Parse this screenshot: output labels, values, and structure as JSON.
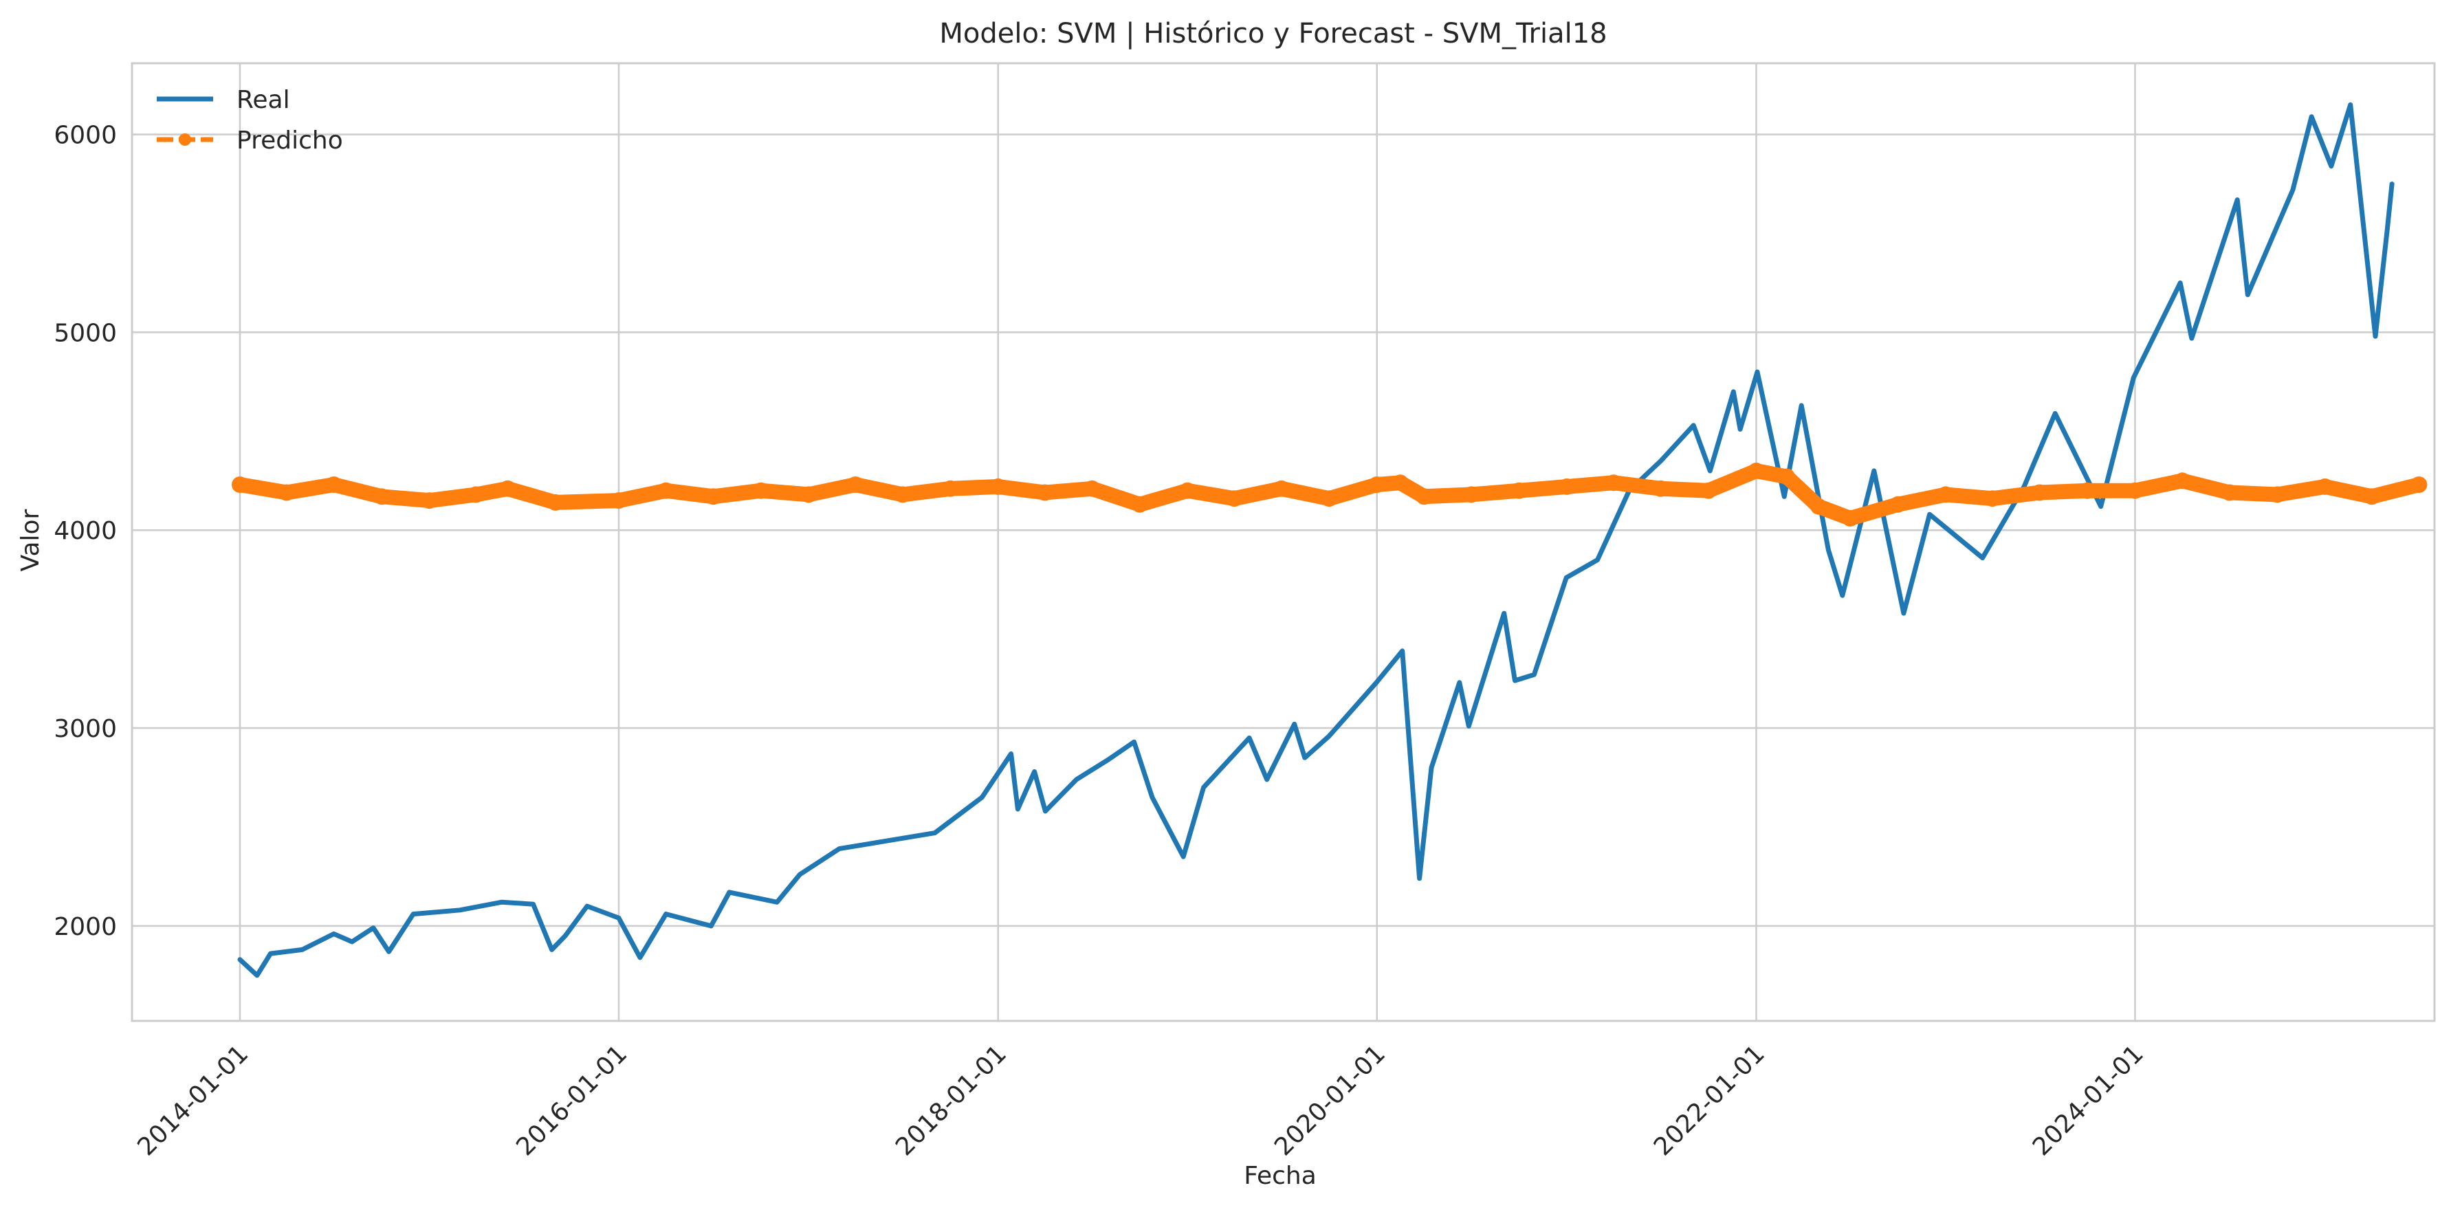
{
  "chart_data": {
    "type": "line",
    "title": "Modelo: SVM | Histórico y Forecast - SVM_Trial18",
    "xlabel": "Fecha",
    "ylabel": "Valor",
    "x_ticks": [
      "2014-01-01",
      "2016-01-01",
      "2018-01-01",
      "2020-01-01",
      "2022-01-01",
      "2024-01-01"
    ],
    "y_ticks": [
      2000,
      3000,
      4000,
      5000,
      6000
    ],
    "xlim": [
      "2013-06-07",
      "2025-07-31"
    ],
    "ylim": [
      1520,
      6360
    ],
    "grid": true,
    "legend_position": "top-left",
    "series": [
      {
        "name": "Real",
        "color": "#1f77b4",
        "marker": "none",
        "points": [
          [
            "2014-01-01",
            1830
          ],
          [
            "2014-02-03",
            1750
          ],
          [
            "2014-03-01",
            1860
          ],
          [
            "2014-05-01",
            1880
          ],
          [
            "2014-07-01",
            1960
          ],
          [
            "2014-08-05",
            1920
          ],
          [
            "2014-09-15",
            1990
          ],
          [
            "2014-10-15",
            1870
          ],
          [
            "2014-12-01",
            2060
          ],
          [
            "2015-03-01",
            2080
          ],
          [
            "2015-05-20",
            2120
          ],
          [
            "2015-07-20",
            2110
          ],
          [
            "2015-08-25",
            1880
          ],
          [
            "2015-09-20",
            1950
          ],
          [
            "2015-11-01",
            2100
          ],
          [
            "2016-01-01",
            2040
          ],
          [
            "2016-02-11",
            1840
          ],
          [
            "2016-04-01",
            2060
          ],
          [
            "2016-06-27",
            2000
          ],
          [
            "2016-08-01",
            2170
          ],
          [
            "2016-11-01",
            2120
          ],
          [
            "2016-12-15",
            2260
          ],
          [
            "2017-03-01",
            2390
          ],
          [
            "2017-06-01",
            2430
          ],
          [
            "2017-09-01",
            2470
          ],
          [
            "2017-12-01",
            2650
          ],
          [
            "2018-01-26",
            2870
          ],
          [
            "2018-02-08",
            2590
          ],
          [
            "2018-03-12",
            2780
          ],
          [
            "2018-04-02",
            2580
          ],
          [
            "2018-06-01",
            2740
          ],
          [
            "2018-08-01",
            2840
          ],
          [
            "2018-09-20",
            2930
          ],
          [
            "2018-10-25",
            2650
          ],
          [
            "2018-12-24",
            2350
          ],
          [
            "2019-02-01",
            2700
          ],
          [
            "2019-04-30",
            2950
          ],
          [
            "2019-06-03",
            2740
          ],
          [
            "2019-07-26",
            3020
          ],
          [
            "2019-08-15",
            2850
          ],
          [
            "2019-10-01",
            2960
          ],
          [
            "2019-12-31",
            3230
          ],
          [
            "2020-02-19",
            3390
          ],
          [
            "2020-03-23",
            2240
          ],
          [
            "2020-04-15",
            2800
          ],
          [
            "2020-06-08",
            3230
          ],
          [
            "2020-06-26",
            3010
          ],
          [
            "2020-09-02",
            3580
          ],
          [
            "2020-09-23",
            3240
          ],
          [
            "2020-10-30",
            3270
          ],
          [
            "2020-12-31",
            3760
          ],
          [
            "2021-03-01",
            3850
          ],
          [
            "2021-05-01",
            4200
          ],
          [
            "2021-07-01",
            4350
          ],
          [
            "2021-09-02",
            4530
          ],
          [
            "2021-10-04",
            4300
          ],
          [
            "2021-11-18",
            4700
          ],
          [
            "2021-12-01",
            4510
          ],
          [
            "2022-01-03",
            4800
          ],
          [
            "2022-02-24",
            4170
          ],
          [
            "2022-03-29",
            4630
          ],
          [
            "2022-05-20",
            3900
          ],
          [
            "2022-06-16",
            3670
          ],
          [
            "2022-08-16",
            4300
          ],
          [
            "2022-10-12",
            3580
          ],
          [
            "2022-12-01",
            4080
          ],
          [
            "2023-03-13",
            3860
          ],
          [
            "2023-06-01",
            4220
          ],
          [
            "2023-07-31",
            4590
          ],
          [
            "2023-10-27",
            4120
          ],
          [
            "2023-12-29",
            4770
          ],
          [
            "2024-03-28",
            5250
          ],
          [
            "2024-04-19",
            4970
          ],
          [
            "2024-07-16",
            5670
          ],
          [
            "2024-08-05",
            5190
          ],
          [
            "2024-10-31",
            5720
          ],
          [
            "2024-12-06",
            6090
          ],
          [
            "2025-01-13",
            5840
          ],
          [
            "2025-02-19",
            6150
          ],
          [
            "2025-04-08",
            4980
          ],
          [
            "2025-05-01",
            5520
          ],
          [
            "2025-05-10",
            5750
          ]
        ]
      },
      {
        "name": "Predicho",
        "color": "#ff7f0e",
        "marker": "circle",
        "points": [
          [
            "2014-01-01",
            4230
          ],
          [
            "2014-04-01",
            4190
          ],
          [
            "2014-07-01",
            4230
          ],
          [
            "2014-10-01",
            4170
          ],
          [
            "2015-01-01",
            4150
          ],
          [
            "2015-04-01",
            4180
          ],
          [
            "2015-06-01",
            4210
          ],
          [
            "2015-09-01",
            4140
          ],
          [
            "2016-01-01",
            4150
          ],
          [
            "2016-04-01",
            4200
          ],
          [
            "2016-07-01",
            4170
          ],
          [
            "2016-10-01",
            4200
          ],
          [
            "2017-01-01",
            4180
          ],
          [
            "2017-04-01",
            4230
          ],
          [
            "2017-07-01",
            4180
          ],
          [
            "2017-10-01",
            4210
          ],
          [
            "2018-01-01",
            4220
          ],
          [
            "2018-04-01",
            4190
          ],
          [
            "2018-07-01",
            4210
          ],
          [
            "2018-10-01",
            4130
          ],
          [
            "2019-01-01",
            4200
          ],
          [
            "2019-04-01",
            4160
          ],
          [
            "2019-07-01",
            4210
          ],
          [
            "2019-10-01",
            4160
          ],
          [
            "2020-01-01",
            4230
          ],
          [
            "2020-02-15",
            4240
          ],
          [
            "2020-04-01",
            4170
          ],
          [
            "2020-07-01",
            4180
          ],
          [
            "2020-10-01",
            4200
          ],
          [
            "2021-01-01",
            4220
          ],
          [
            "2021-04-01",
            4240
          ],
          [
            "2021-07-01",
            4210
          ],
          [
            "2021-10-01",
            4200
          ],
          [
            "2022-01-01",
            4300
          ],
          [
            "2022-03-01",
            4270
          ],
          [
            "2022-05-01",
            4120
          ],
          [
            "2022-07-01",
            4060
          ],
          [
            "2022-10-01",
            4130
          ],
          [
            "2023-01-01",
            4180
          ],
          [
            "2023-04-01",
            4160
          ],
          [
            "2023-07-01",
            4190
          ],
          [
            "2023-10-01",
            4200
          ],
          [
            "2024-01-01",
            4200
          ],
          [
            "2024-04-01",
            4250
          ],
          [
            "2024-07-01",
            4190
          ],
          [
            "2024-10-01",
            4180
          ],
          [
            "2025-01-01",
            4220
          ],
          [
            "2025-04-01",
            4170
          ],
          [
            "2025-07-01",
            4230
          ]
        ]
      }
    ]
  }
}
